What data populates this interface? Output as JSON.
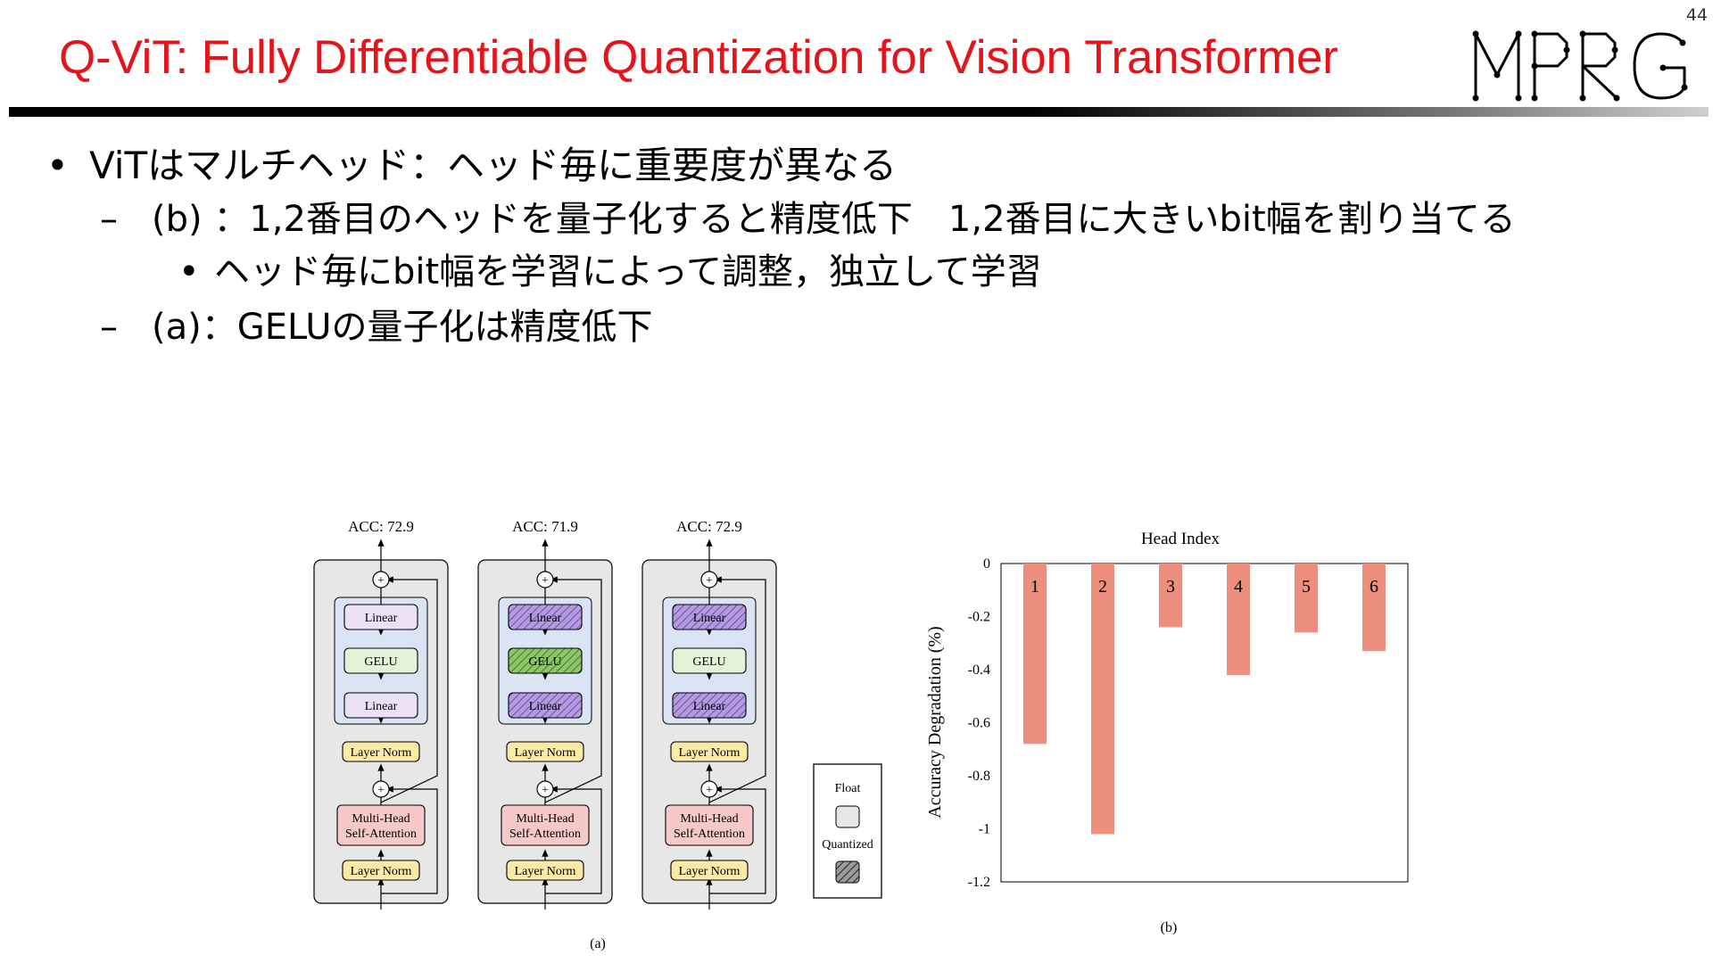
{
  "slide": {
    "number": "44",
    "title": "Q-ViT: Fully Differentiable Quantization for Vision Transformer",
    "logo_text": "MPRG"
  },
  "bullets": [
    {
      "marker": "•",
      "text": "ViTはマルチヘッド：ヘッド毎に重要度が異なる"
    },
    {
      "marker": "–",
      "text": "(b) ：1,2番目のヘッドを量子化すると精度低下　1,2番目に大きいbit幅を割り当てる"
    },
    {
      "marker": "•",
      "text": "ヘッド毎にbit幅を学習によって調整，独立して学習"
    },
    {
      "marker": "–",
      "text": "(a)：GELUの量子化は精度低下"
    }
  ],
  "figure_a": {
    "caption": "(a)",
    "blocks": [
      {
        "acc": "ACC: 72.9",
        "linear_top": "Linear",
        "gelu": "GELU",
        "linear_bottom": "Linear",
        "norm_top": "Layer Norm",
        "mhsa_1": "Multi-Head",
        "mhsa_2": "Self-Attention",
        "norm_bottom": "Layer Norm",
        "quantized": {
          "linear_top": false,
          "gelu": false,
          "linear_bottom": false
        }
      },
      {
        "acc": "ACC: 71.9",
        "linear_top": "Linear",
        "gelu": "GELU",
        "linear_bottom": "Linear",
        "norm_top": "Layer Norm",
        "mhsa_1": "Multi-Head",
        "mhsa_2": "Self-Attention",
        "norm_bottom": "Layer Norm",
        "quantized": {
          "linear_top": true,
          "gelu": true,
          "linear_bottom": true
        }
      },
      {
        "acc": "ACC: 72.9",
        "linear_top": "Linear",
        "gelu": "GELU",
        "linear_bottom": "Linear",
        "norm_top": "Layer Norm",
        "mhsa_1": "Multi-Head",
        "mhsa_2": "Self-Attention",
        "norm_bottom": "Layer Norm",
        "quantized": {
          "linear_top": true,
          "gelu": false,
          "linear_bottom": true
        }
      }
    ],
    "legend": {
      "float": "Float",
      "quantized": "Quantized"
    },
    "colors": {
      "linear": "#ece0f7",
      "linear_q": "#b49be0",
      "gelu": "#e4f3d8",
      "gelu_q": "#8fc56a",
      "norm": "#fbeaa6",
      "mhsa": "#f6c8c8",
      "mlp_bg": "#dbe4f4",
      "block_bg": "#e7e7e7"
    }
  },
  "chart_data": {
    "type": "bar",
    "title": "Head Index",
    "ylabel": "Accuracy Degradation (%)",
    "xlabel": "",
    "caption": "(b)",
    "categories": [
      "1",
      "2",
      "3",
      "4",
      "5",
      "6"
    ],
    "values": [
      -0.68,
      -1.02,
      -0.24,
      -0.42,
      -0.26,
      -0.33
    ],
    "ylim": [
      -1.2,
      0
    ],
    "yticks": [
      0,
      -0.2,
      -0.4,
      -0.6,
      -0.8,
      -1,
      -1.2
    ],
    "ytick_labels": [
      "0",
      "-0.2",
      "-0.4",
      "-0.6",
      "-0.8",
      "-1",
      "-1.2"
    ],
    "grid": false,
    "color": "#ed8f7f"
  }
}
